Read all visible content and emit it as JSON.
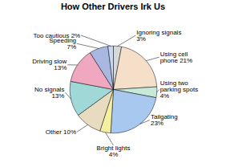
{
  "chart_data": {
    "type": "pie",
    "title": "How Other Drivers Irk Us",
    "categories": [
      "Ignoring signals\n3%",
      "Using cell\nphone 21%",
      "Using two\nparking spots\n4%",
      "Tailgating\n23%",
      "Bright lights\n4%",
      "Other 10%",
      "No signals\n13%",
      "Driving slow\n13%",
      "Speeding\n7%",
      "Too cautious 2%"
    ],
    "values": [
      3,
      21,
      4,
      23,
      4,
      10,
      13,
      13,
      7,
      2
    ],
    "colors": [
      "#d8d8d8",
      "#f5dfc8",
      "#c8e8d8",
      "#a8c8f0",
      "#f5f0a0",
      "#e8dcc0",
      "#a0d8d8",
      "#f0a8c0",
      "#a8b8e0",
      "#c8d8f0"
    ]
  }
}
